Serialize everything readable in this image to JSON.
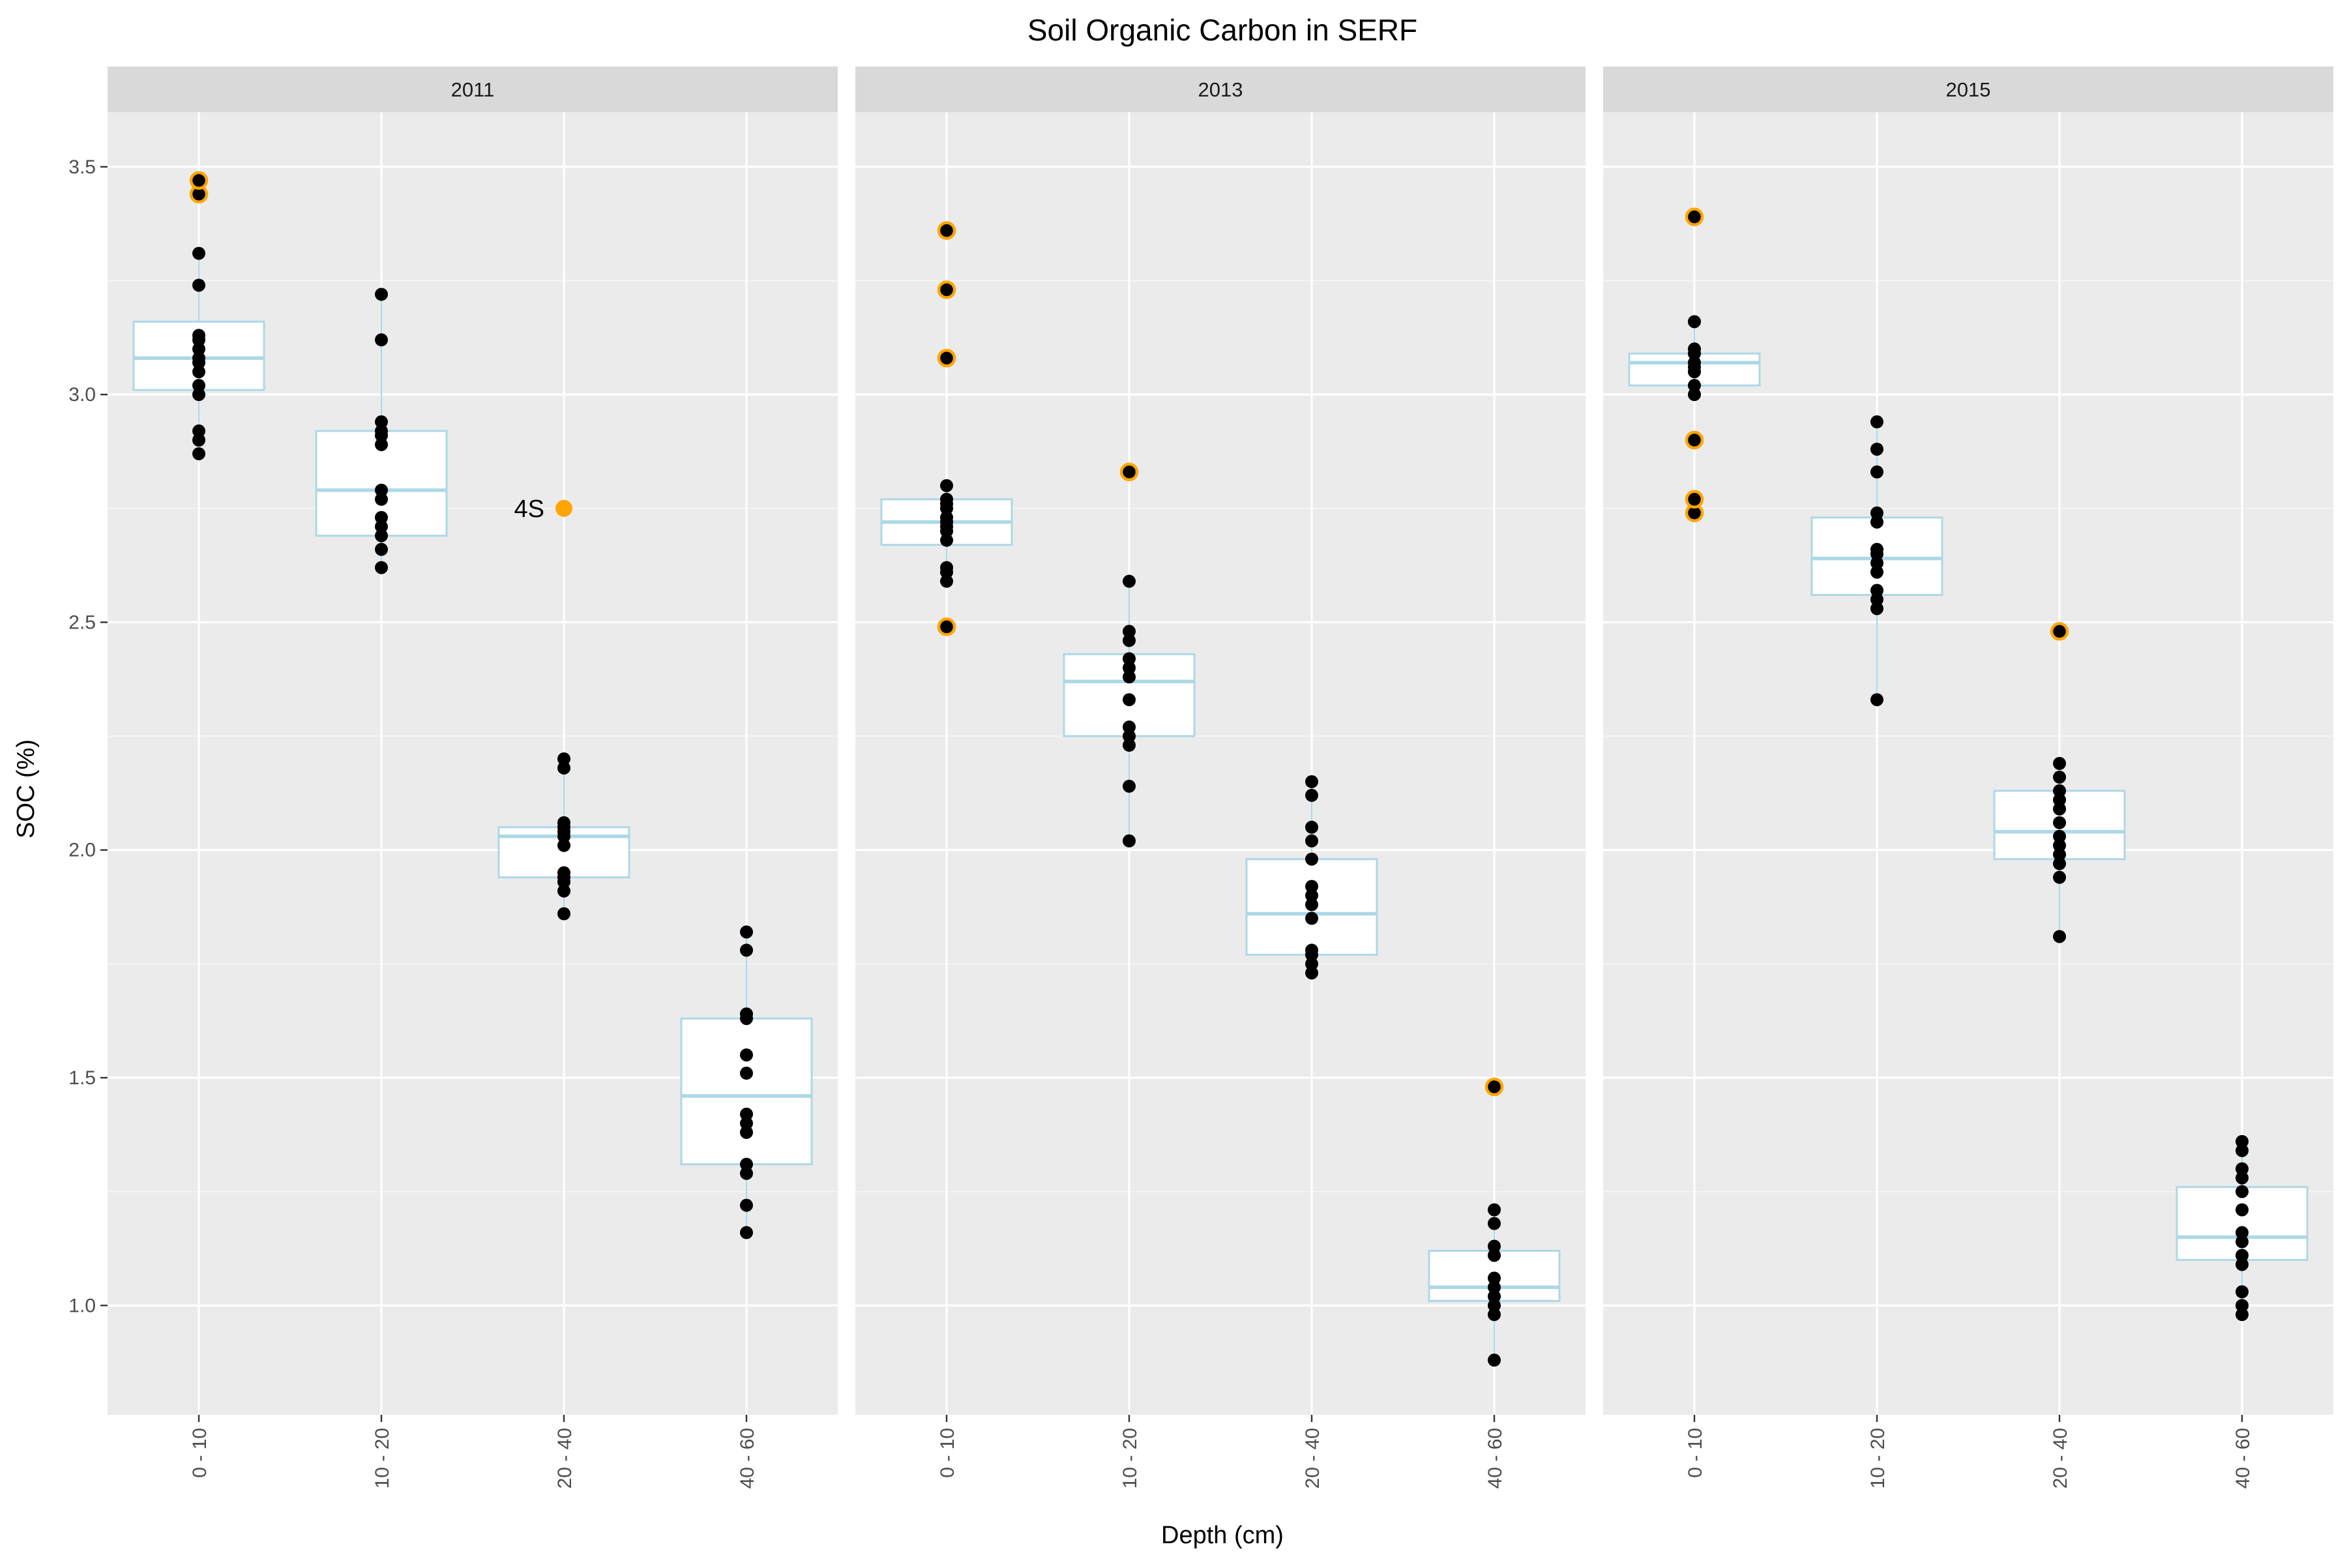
{
  "chart_data": {
    "type": "box",
    "title": "Soil Organic Carbon in SERF",
    "xlabel": "Depth (cm)",
    "ylabel": "SOC (%)",
    "categories": [
      "0 - 10",
      "10 - 20",
      "20 - 40",
      "40 - 60"
    ],
    "y_ticks": [
      "1.0",
      "1.5",
      "2.0",
      "2.5",
      "3.0",
      "3.5"
    ],
    "ylim": [
      0.76,
      3.62
    ],
    "grid": true,
    "colors": {
      "box": "#add8e6",
      "points": "#000000",
      "outlier": "#ffa500",
      "panel": "#ebebeb",
      "strip": "#d9d9d9"
    },
    "panels": [
      {
        "label": "2011",
        "boxes": [
          {
            "category": "0 - 10",
            "q1": 3.01,
            "median": 3.08,
            "q3": 3.16,
            "whisker_low": 2.87,
            "whisker_high": 3.31,
            "points": [
              2.87,
              2.9,
              2.92,
              3.0,
              3.02,
              3.05,
              3.07,
              3.08,
              3.1,
              3.12,
              3.13,
              3.24,
              3.31
            ],
            "outliers": [
              3.44,
              3.47
            ]
          },
          {
            "category": "10 - 20",
            "q1": 2.69,
            "median": 2.79,
            "q3": 2.92,
            "whisker_low": 2.62,
            "whisker_high": 3.22,
            "points": [
              2.62,
              2.66,
              2.69,
              2.71,
              2.73,
              2.77,
              2.79,
              2.89,
              2.91,
              2.92,
              2.94,
              3.12,
              3.22
            ],
            "outliers": []
          },
          {
            "category": "20 - 40",
            "q1": 1.94,
            "median": 2.03,
            "q3": 2.05,
            "whisker_low": 1.86,
            "whisker_high": 2.2,
            "points": [
              1.86,
              1.91,
              1.93,
              1.94,
              1.95,
              2.01,
              2.03,
              2.04,
              2.05,
              2.06,
              2.18,
              2.2
            ],
            "outliers": [],
            "labeled_points": [
              {
                "value": 2.75,
                "label": "4S"
              }
            ]
          },
          {
            "category": "40 - 60",
            "q1": 1.31,
            "median": 1.46,
            "q3": 1.63,
            "whisker_low": 1.16,
            "whisker_high": 1.82,
            "points": [
              1.16,
              1.22,
              1.29,
              1.31,
              1.38,
              1.4,
              1.42,
              1.51,
              1.55,
              1.63,
              1.64,
              1.78,
              1.82
            ],
            "outliers": []
          }
        ]
      },
      {
        "label": "2013",
        "boxes": [
          {
            "category": "0 - 10",
            "q1": 2.67,
            "median": 2.72,
            "q3": 2.77,
            "whisker_low": 2.59,
            "whisker_high": 2.8,
            "points": [
              2.59,
              2.61,
              2.62,
              2.68,
              2.7,
              2.71,
              2.72,
              2.73,
              2.75,
              2.76,
              2.77,
              2.8
            ],
            "outliers": [
              2.49,
              3.08,
              3.23,
              3.36
            ]
          },
          {
            "category": "10 - 20",
            "q1": 2.25,
            "median": 2.37,
            "q3": 2.43,
            "whisker_low": 2.02,
            "whisker_high": 2.59,
            "points": [
              2.02,
              2.14,
              2.23,
              2.25,
              2.27,
              2.33,
              2.38,
              2.4,
              2.42,
              2.46,
              2.48,
              2.59
            ],
            "outliers": [
              2.83
            ]
          },
          {
            "category": "20 - 40",
            "q1": 1.77,
            "median": 1.86,
            "q3": 1.98,
            "whisker_low": 1.73,
            "whisker_high": 2.15,
            "points": [
              1.73,
              1.75,
              1.77,
              1.78,
              1.85,
              1.88,
              1.9,
              1.92,
              1.98,
              2.02,
              2.05,
              2.12,
              2.15
            ],
            "outliers": []
          },
          {
            "category": "40 - 60",
            "q1": 1.01,
            "median": 1.04,
            "q3": 1.12,
            "whisker_low": 0.88,
            "whisker_high": 1.21,
            "points": [
              0.88,
              0.98,
              1.0,
              1.02,
              1.04,
              1.06,
              1.11,
              1.13,
              1.18,
              1.21
            ],
            "outliers": [
              1.48
            ]
          }
        ]
      },
      {
        "label": "2015",
        "boxes": [
          {
            "category": "0 - 10",
            "q1": 3.02,
            "median": 3.07,
            "q3": 3.09,
            "whisker_low": 3.0,
            "whisker_high": 3.16,
            "points": [
              3.0,
              3.02,
              3.05,
              3.06,
              3.07,
              3.09,
              3.1,
              3.16
            ],
            "outliers": [
              2.74,
              2.77,
              2.9,
              3.39
            ]
          },
          {
            "category": "10 - 20",
            "q1": 2.56,
            "median": 2.64,
            "q3": 2.73,
            "whisker_low": 2.33,
            "whisker_high": 2.94,
            "points": [
              2.33,
              2.53,
              2.55,
              2.57,
              2.61,
              2.63,
              2.65,
              2.66,
              2.72,
              2.74,
              2.83,
              2.88,
              2.94
            ],
            "outliers": []
          },
          {
            "category": "20 - 40",
            "q1": 1.98,
            "median": 2.04,
            "q3": 2.13,
            "whisker_low": 1.81,
            "whisker_high": 2.19,
            "points": [
              1.81,
              1.94,
              1.97,
              1.99,
              2.01,
              2.03,
              2.06,
              2.09,
              2.11,
              2.13,
              2.16,
              2.19
            ],
            "outliers": [
              2.48
            ]
          },
          {
            "category": "40 - 60",
            "q1": 1.1,
            "median": 1.15,
            "q3": 1.26,
            "whisker_low": 0.98,
            "whisker_high": 1.36,
            "points": [
              0.98,
              1.0,
              1.03,
              1.09,
              1.11,
              1.14,
              1.16,
              1.21,
              1.25,
              1.28,
              1.3,
              1.34,
              1.36
            ],
            "outliers": []
          }
        ]
      }
    ]
  }
}
